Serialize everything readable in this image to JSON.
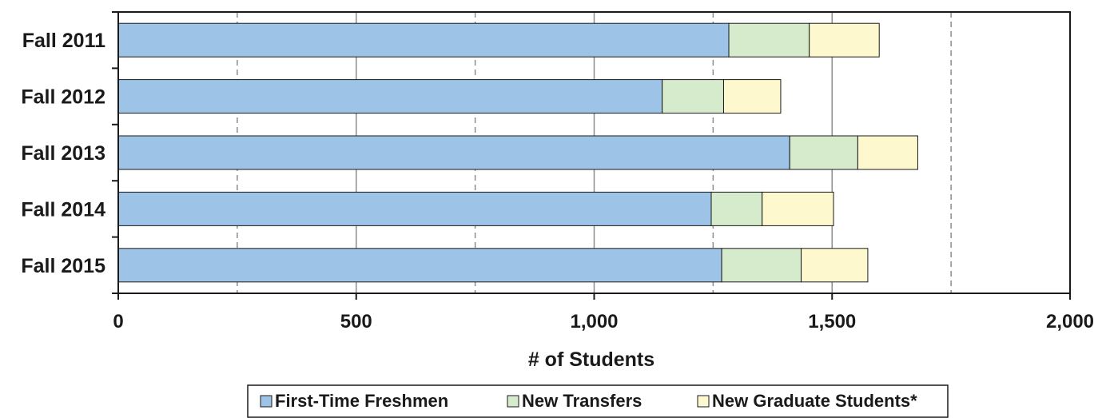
{
  "chart_data": {
    "type": "bar",
    "orientation": "horizontal",
    "stacked": true,
    "categories": [
      "Fall 2011",
      "Fall 2012",
      "Fall 2013",
      "Fall 2014",
      "Fall 2015"
    ],
    "series": [
      {
        "name": "First-Time Freshmen",
        "color": "#9dc3e6",
        "values": [
          1283,
          1143,
          1411,
          1246,
          1268
        ]
      },
      {
        "name": "New Transfers",
        "color": "#d5ebcc",
        "values": [
          169,
          129,
          143,
          107,
          167
        ]
      },
      {
        "name": "New Graduate Students*",
        "color": "#fdf8cd",
        "values": [
          147,
          120,
          126,
          150,
          140
        ]
      }
    ],
    "xlabel": "# of Students",
    "xlim": [
      0,
      2000
    ],
    "xticks": [
      0,
      500,
      1000,
      1500,
      2000
    ],
    "xtick_labels": [
      "0",
      "500",
      "1,000",
      "1,500",
      "2,000"
    ],
    "minor_gridlines": [
      250,
      750,
      1250,
      1750
    ],
    "grid": true,
    "legend_position": "bottom"
  }
}
